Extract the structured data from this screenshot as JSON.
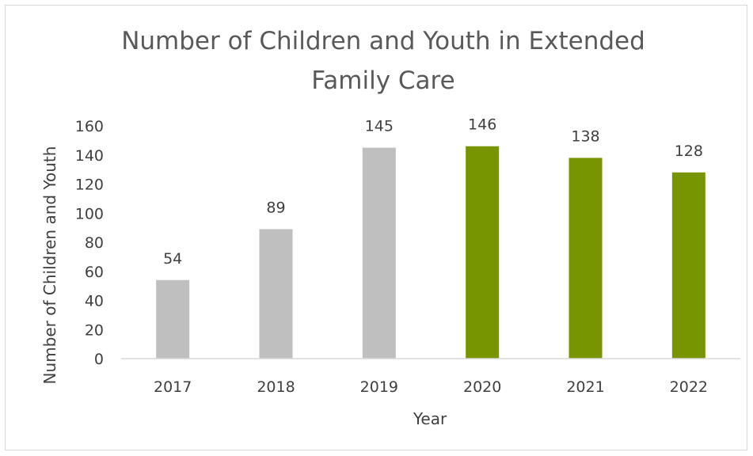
{
  "chart_data": {
    "type": "bar",
    "title": "Number of Children and Youth in Extended Family Care",
    "title_lines": [
      "Number of Children and Youth in Extended",
      "Family Care"
    ],
    "xlabel": "Year",
    "ylabel": "Number of Children and Youth",
    "categories": [
      "2017",
      "2018",
      "2019",
      "2020",
      "2021",
      "2022"
    ],
    "values": [
      54,
      89,
      145,
      146,
      138,
      128
    ],
    "data_labels": [
      "54",
      "89",
      "145",
      "146",
      "138",
      "128"
    ],
    "bar_colors": [
      "#bfbfbf",
      "#bfbfbf",
      "#bfbfbf",
      "#779500",
      "#779500",
      "#779500"
    ],
    "ylim": [
      0,
      160
    ],
    "yticks": [
      "0",
      "20",
      "40",
      "60",
      "80",
      "100",
      "120",
      "140",
      "160"
    ],
    "grid": false,
    "legend": "none"
  },
  "colors": {
    "axis": "#d9d9d9",
    "border": "#d9d9d9",
    "text": "#404040",
    "title": "#595959"
  }
}
